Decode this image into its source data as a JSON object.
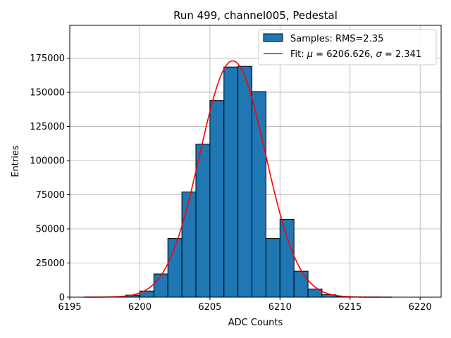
{
  "chart_data": {
    "type": "bar",
    "title": "Run 499, channel005, Pedestal",
    "xlabel": "ADC Counts",
    "ylabel": "Entries",
    "xlim": [
      6195,
      6221.5
    ],
    "ylim": [
      0,
      199000
    ],
    "xticks": [
      6195,
      6200,
      6205,
      6210,
      6215,
      6220
    ],
    "yticks": [
      0,
      25000,
      50000,
      75000,
      100000,
      125000,
      150000,
      175000
    ],
    "grid": true,
    "legend_placement": "top-right",
    "colors": {
      "bars": "#1f77b4",
      "bar_edge": "#000000",
      "fit": "#ff0000",
      "grid": "#b0b0b0"
    },
    "histogram": {
      "name": "Samples: RMS=2.35",
      "bin_edges": [
        6196,
        6197,
        6198,
        6199,
        6200,
        6201,
        6202,
        6203,
        6204,
        6205,
        6206,
        6207,
        6208,
        6209,
        6210,
        6211,
        6212,
        6213,
        6214,
        6215,
        6216,
        6217,
        6218
      ],
      "counts": [
        0,
        0,
        300,
        1500,
        4500,
        17000,
        43000,
        77000,
        112000,
        144000,
        168500,
        169000,
        150500,
        43000,
        57000,
        19000,
        6000,
        1800,
        400,
        0,
        0,
        0
      ]
    },
    "fit": {
      "name": "Fit: $\\mu$ = 6206.626, $\\sigma$ = 2.341",
      "legend_parts": {
        "prefix": "Fit: ",
        "mu_symbol": "μ",
        "mu_text": " = 6206.626, ",
        "sigma_symbol": "σ",
        "sigma_text": " = 2.341"
      },
      "mu": 6206.626,
      "sigma": 2.341,
      "amplitude": 173000,
      "x_range": [
        6196,
        6218
      ]
    }
  }
}
